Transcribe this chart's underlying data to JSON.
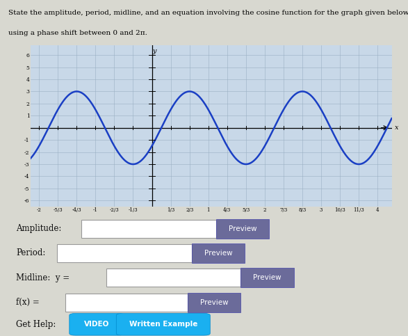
{
  "title_line1": "State the amplitude, period, midline, and an equation involving the cosine function for the graph given below",
  "title_line2": "using a phase shift between 0 and 2π.",
  "amplitude": 3,
  "period": 2,
  "midline": 0,
  "xlim": [
    -2.15,
    4.25
  ],
  "ylim": [
    -6.5,
    6.8
  ],
  "curve_color": "#1a3fc4",
  "graph_bg": "#c8d8e8",
  "grid_color": "#9ab0c4",
  "axis_color": "#000000",
  "x_tick_values": [
    -2.0,
    -1.6667,
    -1.3333,
    -1.0,
    -0.6667,
    -0.3333,
    0.3333,
    0.6667,
    1.0,
    1.3333,
    1.6667,
    2.0,
    2.3333,
    2.6667,
    3.0,
    3.3333,
    3.6667,
    4.0
  ],
  "x_tick_labels": [
    "-2",
    "-5/3",
    "-4/3",
    "-1",
    "-2/3",
    "-1/3",
    "1/3",
    "2/3",
    "1",
    "4/3",
    "5/3",
    "2",
    "7/3",
    "8/3",
    "3",
    "10/3",
    "11/3",
    "4"
  ],
  "y_ticks": [
    -6,
    -5,
    -4,
    -3,
    -2,
    -1,
    1,
    2,
    3,
    4,
    5,
    6
  ],
  "y_tick_labels": [
    "-6",
    "-5",
    "-4",
    "-3",
    "-2",
    "-1",
    "1",
    "2",
    "3",
    "4",
    "5",
    "6"
  ],
  "page_bg": "#d8d8d0",
  "form_labels": [
    "Amplitude:",
    "Period:",
    "Midline:  y =",
    "f(x) ="
  ],
  "preview_bg": "#6b6b9a",
  "preview_text": "Preview",
  "preview_text_color": "#ffffff",
  "video_bg": "#1ab0f0",
  "written_bg": "#1ab0f0",
  "bottom_labels": [
    "Get Help:",
    "VIDEO",
    "Written Example"
  ]
}
